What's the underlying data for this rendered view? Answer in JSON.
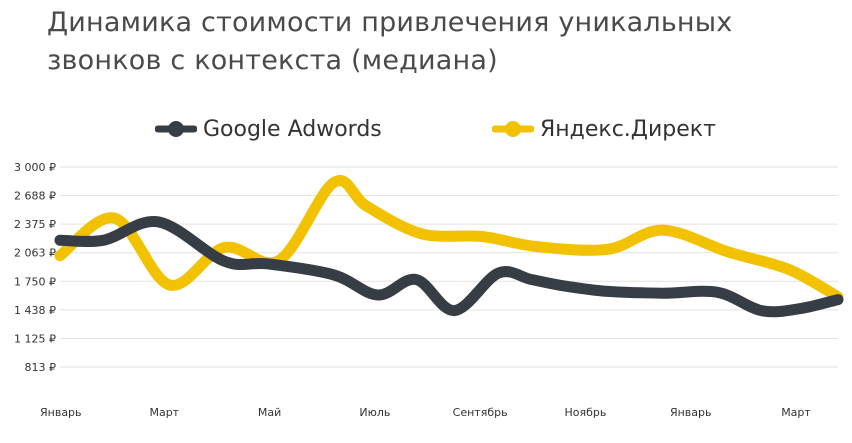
{
  "title_line1": "Динамика стоимости привлечения уникальных",
  "title_line2": "звонков с контекста (медиана)",
  "chart_data": {
    "type": "line",
    "title": "Динамика стоимости привлечения уникальных звонков с контекста (медиана)",
    "xlabel": "",
    "ylabel": "",
    "x_tick_labels": [
      "Январь",
      "Март",
      "Май",
      "Июль",
      "Сентябрь",
      "Ноябрь",
      "Январь",
      "Март"
    ],
    "y_tick_labels": [
      "3 000 ₽",
      "2 688 ₽",
      "2 375 ₽",
      "2 063 ₽",
      "1 750 ₽",
      "1 438 ₽",
      "1 125 ₽",
      "813 ₽"
    ],
    "y_ticks": [
      3000,
      2688,
      2375,
      2063,
      1750,
      1438,
      1125,
      813
    ],
    "ylim": [
      813,
      3000
    ],
    "x_range": [
      0,
      14.2
    ],
    "grid": true,
    "legend_position": "top",
    "series": [
      {
        "name": "Google Adwords",
        "color": "#363d44",
        "x": [
          0,
          0.8,
          1.8,
          3,
          3.8,
          5,
          5.8,
          6.5,
          7.2,
          8,
          8.6,
          9.2,
          10,
          11,
          12,
          12.8,
          13.5,
          14.2
        ],
        "values": [
          2200,
          2200,
          2400,
          1970,
          1940,
          1820,
          1600,
          1770,
          1430,
          1840,
          1770,
          1700,
          1640,
          1620,
          1630,
          1430,
          1450,
          1550
        ]
      },
      {
        "name": "Яндекс.Директ",
        "color": "#f2c200",
        "x": [
          0,
          1,
          2,
          3,
          4,
          5,
          5.6,
          6.6,
          7.7,
          8.7,
          10,
          11,
          12.2,
          13.3,
          14.2
        ],
        "values": [
          2030,
          2440,
          1710,
          2120,
          1980,
          2830,
          2570,
          2270,
          2240,
          2130,
          2100,
          2310,
          2070,
          1880,
          1580
        ]
      }
    ]
  }
}
